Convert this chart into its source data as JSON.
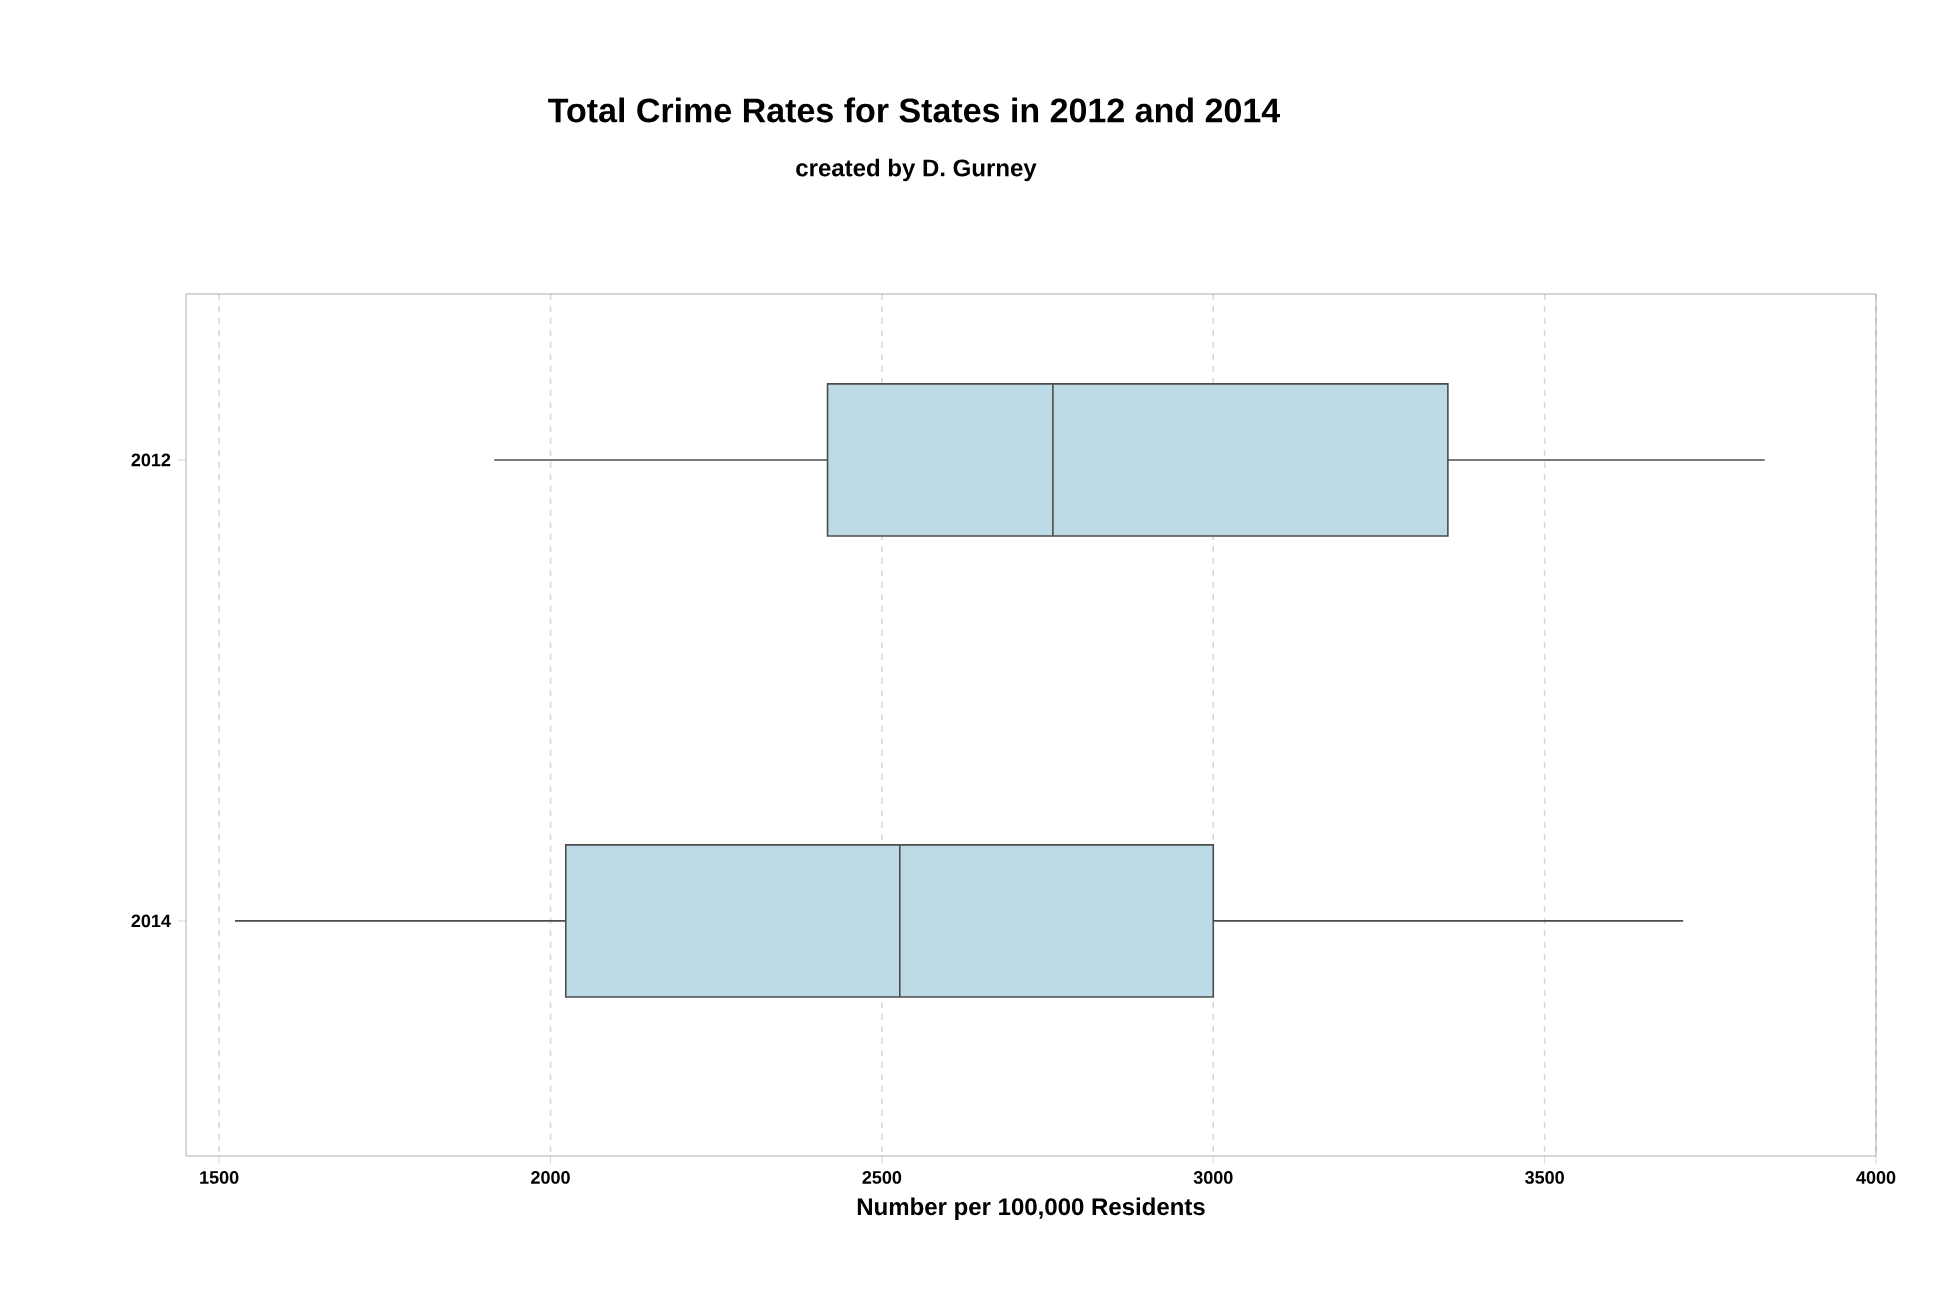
{
  "chart_data": {
    "type": "box",
    "title": "Total Crime Rates for States in 2012 and 2014",
    "subtitle": "created by D. Gurney",
    "xlabel": "Number per 100,000 Residents",
    "orientation": "horizontal",
    "categories": [
      "2012",
      "2014"
    ],
    "boxes": [
      {
        "low": 1915,
        "q1": 2418,
        "median": 2758,
        "q3": 3354,
        "high": 3832
      },
      {
        "low": 1524,
        "q1": 2023,
        "median": 2527,
        "q3": 3000,
        "high": 3709
      }
    ],
    "color": "#bddbe6",
    "xlim": [
      1450,
      4000
    ],
    "xticks": [
      1500,
      2000,
      2500,
      3000,
      3500,
      4000
    ],
    "grid": "x"
  }
}
